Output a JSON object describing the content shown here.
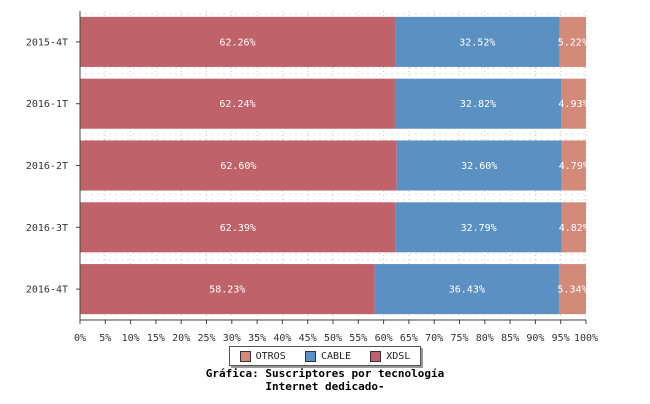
{
  "chart_data": {
    "type": "bar",
    "orientation": "horizontal",
    "stacked": true,
    "categories": [
      "2015-4T",
      "2016-1T",
      "2016-2T",
      "2016-3T",
      "2016-4T"
    ],
    "series": [
      {
        "name": "XDSL",
        "color": "#c0626a",
        "values": [
          62.26,
          62.24,
          62.6,
          62.39,
          58.23
        ],
        "labels": [
          "62.26%",
          "62.24%",
          "62.60%",
          "62.39%",
          "58.23%"
        ]
      },
      {
        "name": "CABLE",
        "color": "#5b91c2",
        "values": [
          32.52,
          32.82,
          32.6,
          32.79,
          36.43
        ],
        "labels": [
          "32.52%",
          "32.82%",
          "32.60%",
          "32.79%",
          "36.43%"
        ]
      },
      {
        "name": "OTROS",
        "color": "#d48a78",
        "values": [
          5.22,
          4.93,
          4.79,
          4.82,
          5.34
        ],
        "labels": [
          "5.22%",
          "4.93%",
          "4.79%",
          "4.82%",
          "5.34%"
        ]
      }
    ],
    "x_ticks": [
      "0%",
      "5%",
      "10%",
      "15%",
      "20%",
      "25%",
      "30%",
      "35%",
      "40%",
      "45%",
      "50%",
      "55%",
      "60%",
      "65%",
      "70%",
      "75%",
      "80%",
      "85%",
      "90%",
      "95%",
      "100%"
    ],
    "xlim": [
      0,
      100
    ],
    "legend": [
      "OTROS",
      "CABLE",
      "XDSL"
    ],
    "legend_position": "bottom",
    "caption_line1": "Gráfica: Suscriptores por tecnología",
    "caption_line2": "Internet dedicado-"
  }
}
